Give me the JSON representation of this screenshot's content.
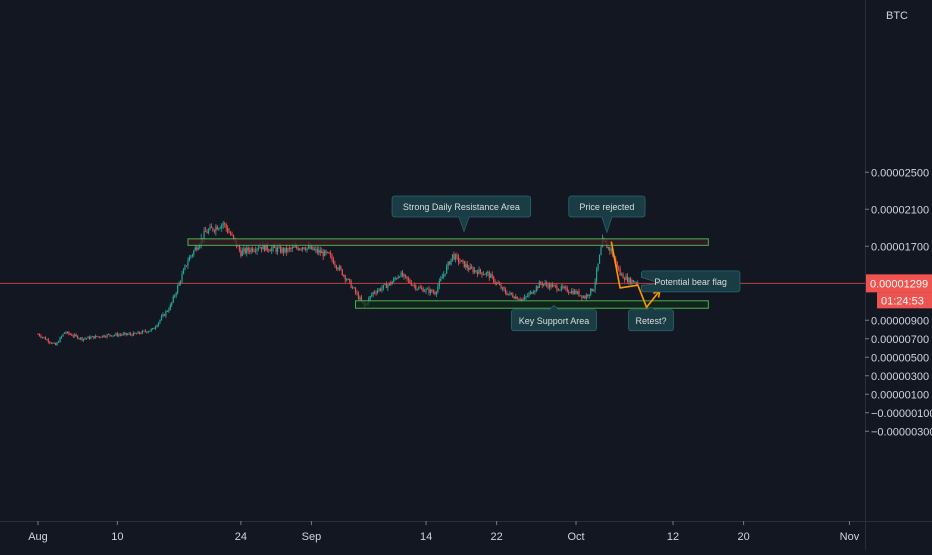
{
  "chart_data": {
    "type": "candlestick",
    "currency": "BTC",
    "y_axis_ticks": [
      "0.00002500",
      "0.00002100",
      "0.00001700",
      "0.00000900",
      "0.00000700",
      "0.00000500",
      "0.00000300",
      "0.00000100",
      "−0.00000100",
      "−0.00000300"
    ],
    "x_axis_ticks": [
      {
        "label": "Aug",
        "day": 0
      },
      {
        "label": "10",
        "day": 9
      },
      {
        "label": "24",
        "day": 23
      },
      {
        "label": "Sep",
        "day": 31
      },
      {
        "label": "14",
        "day": 44
      },
      {
        "label": "22",
        "day": 52
      },
      {
        "label": "Oct",
        "day": 61
      },
      {
        "label": "12",
        "day": 72
      },
      {
        "label": "20",
        "day": 80
      },
      {
        "label": "Nov",
        "day": 92
      }
    ],
    "price_path": [
      {
        "day": 0,
        "price": 7.5e-06
      },
      {
        "day": 2,
        "price": 6.3e-06
      },
      {
        "day": 3,
        "price": 7.7e-06
      },
      {
        "day": 5,
        "price": 7e-06
      },
      {
        "day": 8,
        "price": 7.4e-06
      },
      {
        "day": 11,
        "price": 7.5e-06
      },
      {
        "day": 13,
        "price": 8e-06
      },
      {
        "day": 15,
        "price": 1.05e-05
      },
      {
        "day": 17,
        "price": 1.55e-05
      },
      {
        "day": 19,
        "price": 1.85e-05
      },
      {
        "day": 21,
        "price": 1.95e-05
      },
      {
        "day": 22,
        "price": 1.8e-05
      },
      {
        "day": 23,
        "price": 1.63e-05
      },
      {
        "day": 25,
        "price": 1.7e-05
      },
      {
        "day": 28,
        "price": 1.65e-05
      },
      {
        "day": 30,
        "price": 1.7e-05
      },
      {
        "day": 33,
        "price": 1.6e-05
      },
      {
        "day": 35,
        "price": 1.35e-05
      },
      {
        "day": 37,
        "price": 1.05e-05
      },
      {
        "day": 38,
        "price": 1.2e-05
      },
      {
        "day": 40,
        "price": 1.3e-05
      },
      {
        "day": 41,
        "price": 1.4e-05
      },
      {
        "day": 43,
        "price": 1.25e-05
      },
      {
        "day": 45,
        "price": 1.2e-05
      },
      {
        "day": 47,
        "price": 1.6e-05
      },
      {
        "day": 49,
        "price": 1.45e-05
      },
      {
        "day": 51,
        "price": 1.4e-05
      },
      {
        "day": 53,
        "price": 1.2e-05
      },
      {
        "day": 55,
        "price": 1.12e-05
      },
      {
        "day": 57,
        "price": 1.3e-05
      },
      {
        "day": 59,
        "price": 1.25e-05
      },
      {
        "day": 61,
        "price": 1.2e-05
      },
      {
        "day": 62,
        "price": 1.15e-05
      },
      {
        "day": 63,
        "price": 1.25e-05
      },
      {
        "day": 64,
        "price": 1.75e-05
      },
      {
        "day": 65,
        "price": 1.65e-05
      },
      {
        "day": 66,
        "price": 1.4e-05
      },
      {
        "day": 67,
        "price": 1.33e-05
      },
      {
        "day": 68,
        "price": 1.31e-05
      }
    ],
    "annotations": [
      {
        "text": "Strong Daily Resistance Area",
        "day": 48,
        "price": 2.13e-05
      },
      {
        "text": "Price rejected",
        "day": 64.5,
        "price": 2.13e-05
      },
      {
        "text": "Potential bear flag",
        "day": 74,
        "price": 1.32e-05
      },
      {
        "text": "Key Support Area",
        "day": 58.5,
        "price": 9e-06
      },
      {
        "text": "Retest?",
        "day": 69.5,
        "price": 9e-06
      }
    ],
    "resistance_zone": {
      "price_low": 1.71e-05,
      "price_high": 1.78e-05,
      "day_start": 17,
      "day_end": 76
    },
    "support_zone": {
      "price_low": 1.03e-05,
      "price_high": 1.11e-05,
      "day_start": 36,
      "day_end": 76
    },
    "projection_path": [
      {
        "day": 65,
        "price": 1.75e-05
      },
      {
        "day": 66,
        "price": 1.25e-05
      },
      {
        "day": 68,
        "price": 1.28e-05
      },
      {
        "day": 69,
        "price": 1.04e-05
      },
      {
        "day": 70.5,
        "price": 1.22e-05
      }
    ],
    "current_price": {
      "label": "0.00001299",
      "price": 1.299e-05,
      "countdown": "01:24:53"
    },
    "colors": {
      "background": "#131722",
      "up": "#26a69a",
      "down": "#ef5350",
      "zone_stroke": "#4caf50",
      "resistance_fill": "#3b1e23",
      "support_fill": "#10291a",
      "callout_fill": "#1a3c44",
      "callout_text": "#dcdcdc",
      "axis_text": "#d1d4dc",
      "price_line": "#ef5350",
      "projection": "#ff9800"
    }
  }
}
